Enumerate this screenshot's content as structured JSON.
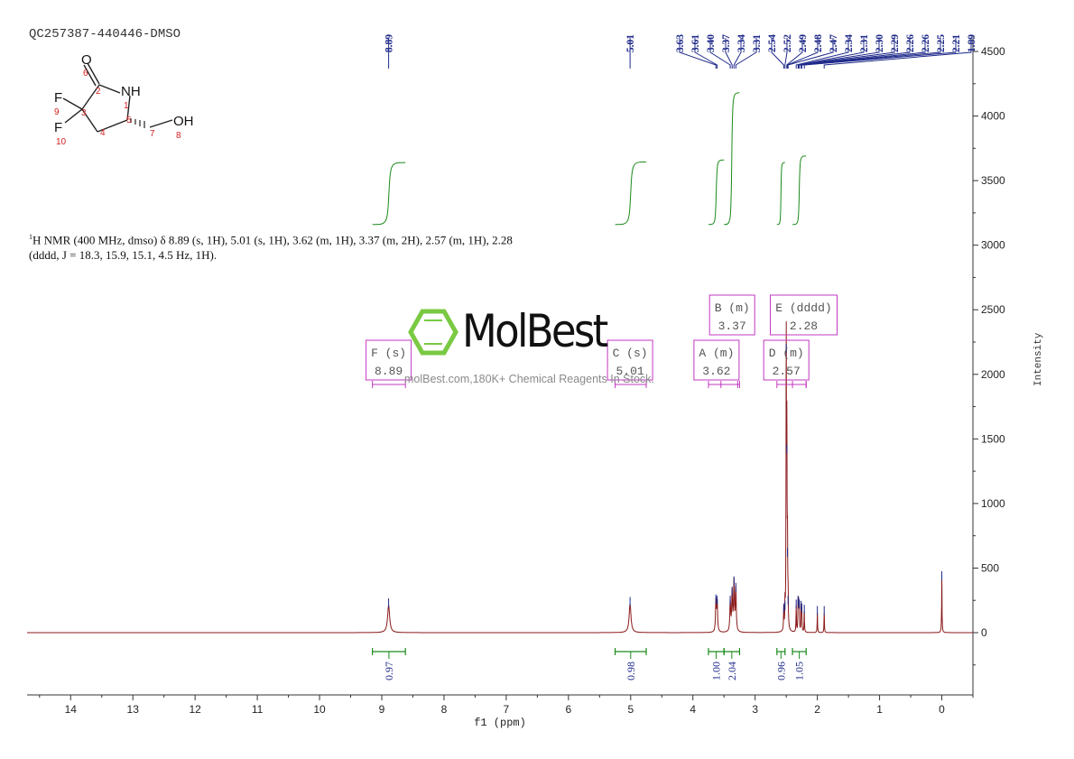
{
  "header": {
    "sample_id": "QC257387-440446-DMSO",
    "nmr_prefix": "1",
    "nmr_text": "H NMR (400 MHz, dmso) δ 8.89 (s, 1H), 5.01 (s, 1H), 3.62 (m, 1H), 3.37 (m, 2H), 2.57 (m, 1H), 2.28 (dddd, J = 18.3, 15.9, 15.1, 4.5 Hz, 1H)."
  },
  "watermark": {
    "brand": "MolBest",
    "tagline": "molBest.com,180K+ Chemical Reagents In Stock."
  },
  "molecule": {
    "atoms": [
      "O",
      "NH",
      "F",
      "F",
      "OH"
    ],
    "numbers": [
      "6",
      "2",
      "1",
      "9",
      "3",
      "5",
      "10",
      "4",
      "7",
      "8"
    ]
  },
  "colors": {
    "spectrum": "#8b1a1a",
    "peak_label": "#1f2a8a",
    "integral": "#1a8a1a",
    "multiplet_box": "#c238c2",
    "atom_number": "#d42020",
    "brand_green": "#7ac943"
  },
  "chart_data": {
    "type": "line",
    "title": "",
    "xlabel": "f1 (ppm)",
    "ylabel": "Intensity",
    "xlim": [
      14.7,
      -0.5
    ],
    "x_reversed": true,
    "ylim": [
      -450,
      4600
    ],
    "x_ticks": [
      14,
      13,
      12,
      11,
      10,
      9,
      8,
      7,
      6,
      5,
      4,
      3,
      2,
      1,
      0
    ],
    "y_ticks": [
      0,
      500,
      1000,
      1500,
      2000,
      2500,
      3000,
      3500,
      4000,
      4500
    ],
    "peaks": [
      {
        "ppm": 8.89,
        "height": 210,
        "width": 0.02
      },
      {
        "ppm": 5.01,
        "height": 220,
        "width": 0.018
      },
      {
        "ppm": 3.63,
        "height": 240,
        "width": 0.008
      },
      {
        "ppm": 3.61,
        "height": 230,
        "width": 0.008
      },
      {
        "ppm": 3.4,
        "height": 230,
        "width": 0.008
      },
      {
        "ppm": 3.37,
        "height": 300,
        "width": 0.008
      },
      {
        "ppm": 3.34,
        "height": 380,
        "width": 0.008
      },
      {
        "ppm": 3.31,
        "height": 330,
        "width": 0.008
      },
      {
        "ppm": 2.54,
        "height": 170,
        "width": 0.004
      },
      {
        "ppm": 2.52,
        "height": 190,
        "width": 0.004
      },
      {
        "ppm": 2.5,
        "height": 2180,
        "width": 0.004
      },
      {
        "ppm": 2.49,
        "height": 1400,
        "width": 0.004
      },
      {
        "ppm": 2.48,
        "height": 600,
        "width": 0.004
      },
      {
        "ppm": 2.47,
        "height": 230,
        "width": 0.004
      },
      {
        "ppm": 2.34,
        "height": 200,
        "width": 0.004
      },
      {
        "ppm": 2.31,
        "height": 230,
        "width": 0.004
      },
      {
        "ppm": 2.3,
        "height": 210,
        "width": 0.004
      },
      {
        "ppm": 2.29,
        "height": 200,
        "width": 0.004
      },
      {
        "ppm": 2.26,
        "height": 190,
        "width": 0.004
      },
      {
        "ppm": 2.25,
        "height": 170,
        "width": 0.004
      },
      {
        "ppm": 2.21,
        "height": 160,
        "width": 0.004
      },
      {
        "ppm": 2.0,
        "height": 150,
        "width": 0.004
      },
      {
        "ppm": 1.89,
        "height": 150,
        "width": 0.004
      },
      {
        "ppm": 0.0,
        "height": 420,
        "width": 0.004
      }
    ],
    "peak_labels": [
      {
        "ppm": 8.89,
        "text": "8.89"
      },
      {
        "ppm": 5.01,
        "text": "5.01"
      },
      {
        "ppm": 3.63,
        "text": "3.63"
      },
      {
        "ppm": 3.61,
        "text": "3.61"
      },
      {
        "ppm": 3.4,
        "text": "3.40"
      },
      {
        "ppm": 3.37,
        "text": "3.37"
      },
      {
        "ppm": 3.34,
        "text": "3.34"
      },
      {
        "ppm": 3.31,
        "text": "3.31"
      },
      {
        "ppm": 2.54,
        "text": "2.54"
      },
      {
        "ppm": 2.52,
        "text": "2.52"
      },
      {
        "ppm": 2.49,
        "text": "2.49"
      },
      {
        "ppm": 2.48,
        "text": "2.48"
      },
      {
        "ppm": 2.47,
        "text": "2.47"
      },
      {
        "ppm": 2.34,
        "text": "2.34"
      },
      {
        "ppm": 2.31,
        "text": "2.31"
      },
      {
        "ppm": 2.3,
        "text": "2.30"
      },
      {
        "ppm": 2.29,
        "text": "2.29"
      },
      {
        "ppm": 2.26,
        "text": "2.26"
      },
      {
        "ppm": 2.26,
        "text": "2.26"
      },
      {
        "ppm": 2.25,
        "text": "2.25"
      },
      {
        "ppm": 2.21,
        "text": "2.21"
      },
      {
        "ppm": 1.89,
        "text": "1.89"
      }
    ],
    "integrals": [
      {
        "from": 9.15,
        "to": 8.62,
        "value": "0.97",
        "curve_start": 3160,
        "curve_end": 3640
      },
      {
        "from": 5.25,
        "to": 4.75,
        "value": "0.98",
        "curve_start": 3160,
        "curve_end": 3645
      },
      {
        "from": 3.75,
        "to": 3.5,
        "value": "1.00",
        "curve_start": 3160,
        "curve_end": 3660
      },
      {
        "from": 3.5,
        "to": 3.25,
        "value": "2.04",
        "curve_start": 3160,
        "curve_end": 4180
      },
      {
        "from": 2.65,
        "to": 2.52,
        "value": "0.96",
        "curve_start": 3160,
        "curve_end": 3640
      },
      {
        "from": 2.4,
        "to": 2.18,
        "value": "1.05",
        "curve_start": 3160,
        "curve_end": 3690
      }
    ],
    "multiplets": [
      {
        "label": "F (s)",
        "shift": "8.89",
        "from": 9.15,
        "to": 8.62
      },
      {
        "label": "C (s)",
        "shift": "5.01",
        "from": 5.25,
        "to": 4.75
      },
      {
        "label": "A (m)",
        "shift": "3.62",
        "from": 3.75,
        "to": 3.28
      },
      {
        "label": "B (m)",
        "shift": "3.37",
        "from": 3.55,
        "to": 3.25
      },
      {
        "label": "D (m)",
        "shift": "2.57",
        "from": 2.65,
        "to": 2.18
      },
      {
        "label": "E (dddd)",
        "shift": "2.28",
        "from": 2.4,
        "to": 2.18
      }
    ]
  }
}
